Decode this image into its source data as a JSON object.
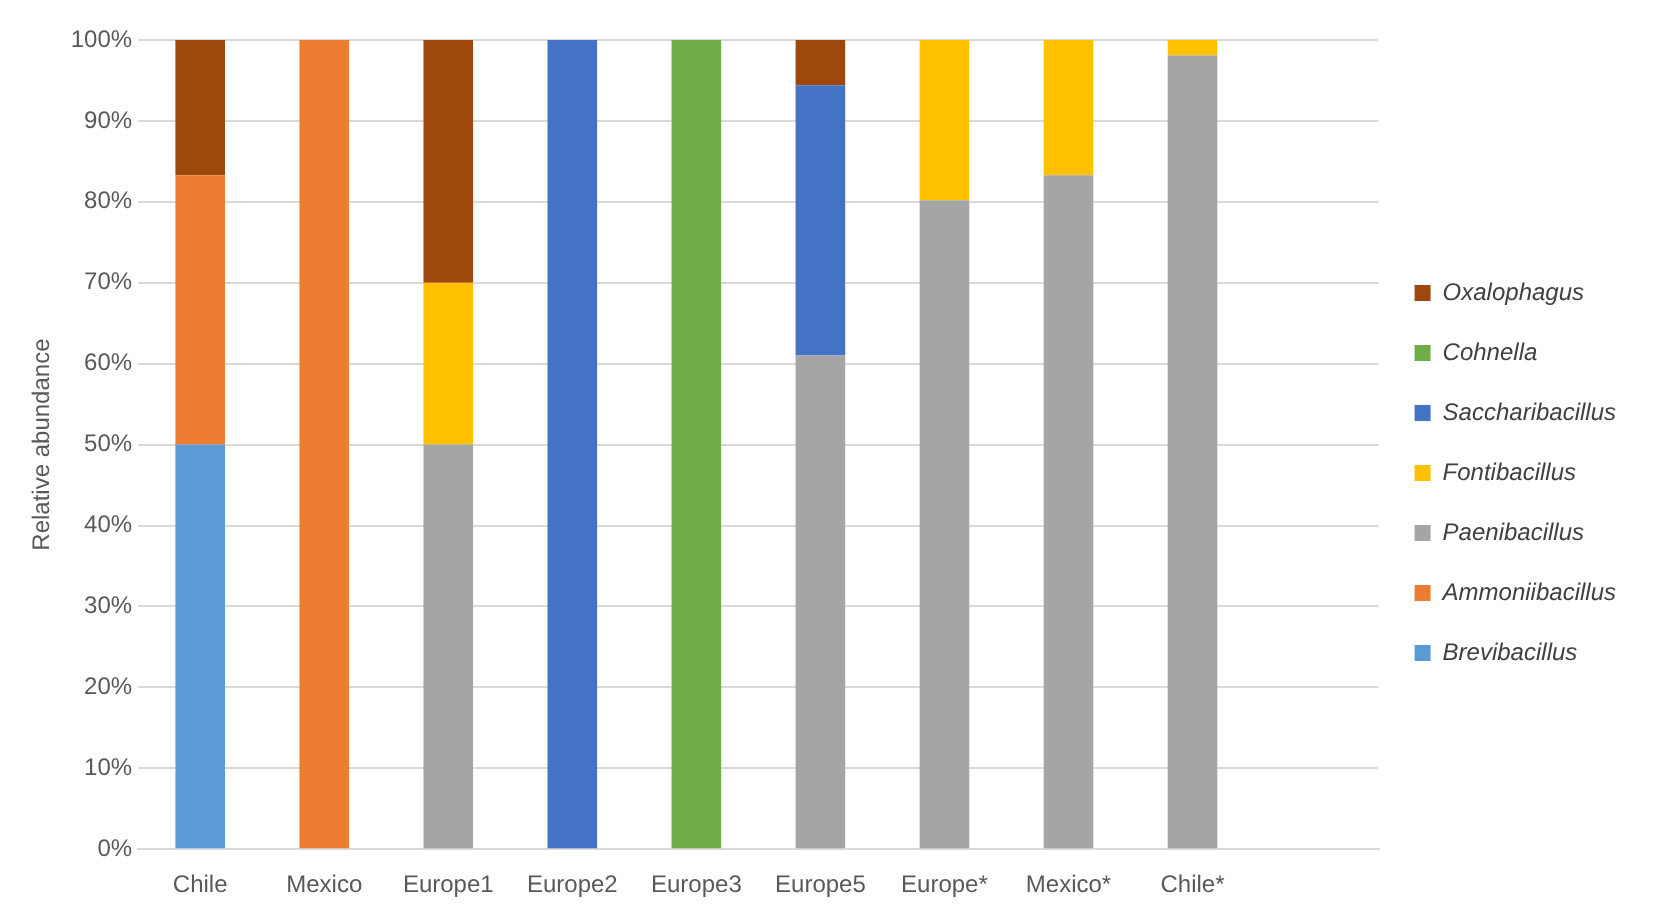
{
  "chart_data": {
    "type": "bar",
    "stacked": true,
    "ylabel": "Relative abundance",
    "categories": [
      "Chile",
      "Mexico",
      "Europe1",
      "Europe2",
      "Europe3",
      "Europe5",
      "Europe*",
      "Mexico*",
      "Chile*",
      null
    ],
    "series": [
      {
        "name": "Brevibacillus",
        "color": "#5b9bd5",
        "values": [
          50,
          0,
          0,
          0,
          0,
          0,
          0,
          0,
          0,
          null
        ]
      },
      {
        "name": "Ammoniibacillus",
        "color": "#ed7d31",
        "values": [
          33.3,
          100,
          0,
          0,
          0,
          0,
          0,
          0,
          0,
          null
        ]
      },
      {
        "name": "Paenibacillus",
        "color": "#a5a5a5",
        "values": [
          0,
          0,
          50,
          0,
          0,
          61,
          80.2,
          83.3,
          98.1,
          null
        ]
      },
      {
        "name": "Fontibacillus",
        "color": "#ffc000",
        "values": [
          0,
          0,
          20,
          0,
          0,
          0,
          19.8,
          16.7,
          1.9,
          null
        ]
      },
      {
        "name": "Saccharibacillus",
        "color": "#4472c4",
        "values": [
          0,
          0,
          0,
          100,
          0,
          33.4,
          0,
          0,
          0,
          null
        ]
      },
      {
        "name": "Cohnella",
        "color": "#70ad47",
        "values": [
          0,
          0,
          0,
          0,
          100,
          0,
          0,
          0,
          0,
          null
        ]
      },
      {
        "name": "Oxalophagus",
        "color": "#9e480e",
        "values": [
          16.7,
          0,
          30,
          0,
          0,
          5.6,
          0,
          0,
          0,
          null
        ]
      }
    ],
    "ylim": [
      0,
      100
    ],
    "yticks": [
      {
        "value": 0,
        "label": "0%"
      },
      {
        "value": 10,
        "label": "10%"
      },
      {
        "value": 20,
        "label": "20%"
      },
      {
        "value": 30,
        "label": "30%"
      },
      {
        "value": 40,
        "label": "40%"
      },
      {
        "value": 50,
        "label": "50%"
      },
      {
        "value": 60,
        "label": "60%"
      },
      {
        "value": 70,
        "label": "70%"
      },
      {
        "value": 80,
        "label": "80%"
      },
      {
        "value": 90,
        "label": "90%"
      },
      {
        "value": 100,
        "label": "100%"
      }
    ],
    "grid": "y",
    "legend": "right"
  }
}
